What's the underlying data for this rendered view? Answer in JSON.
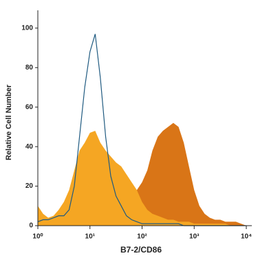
{
  "chart_data": {
    "type": "area",
    "log_x": true,
    "xlabel": "B7-2/CD86",
    "ylabel": "Relative Cell Number",
    "x": [
      1,
      1.26,
      1.58,
      2,
      2.51,
      3.16,
      3.98,
      5.01,
      6.31,
      7.94,
      10,
      12.6,
      15.8,
      20,
      25.1,
      31.6,
      39.8,
      50.1,
      63.1,
      79.4,
      100,
      126,
      158,
      200,
      251,
      316,
      398,
      501,
      631,
      794,
      1000,
      1259,
      1585,
      1995,
      2512,
      3162,
      3981,
      5012,
      6310,
      7943,
      10000
    ],
    "series": [
      {
        "color": "#d97517",
        "style": "fill",
        "values": [
          2,
          1,
          1,
          1,
          2,
          2,
          3,
          3,
          3,
          4,
          4,
          4,
          4,
          4,
          4,
          4,
          5,
          8,
          12,
          18,
          22,
          28,
          38,
          45,
          48,
          50,
          52,
          50,
          42,
          30,
          18,
          10,
          6,
          4,
          3,
          3,
          2,
          2,
          2,
          1,
          0
        ]
      },
      {
        "color": "#f5a623",
        "style": "fill",
        "values": [
          10,
          6,
          4,
          5,
          8,
          12,
          18,
          28,
          38,
          42,
          47,
          48,
          42,
          38,
          35,
          32,
          30,
          26,
          22,
          18,
          12,
          8,
          6,
          5,
          4,
          3,
          3,
          2,
          2,
          2,
          1,
          1,
          1,
          1,
          1,
          1,
          1,
          0,
          0,
          0,
          0
        ]
      },
      {
        "color": "#1f5a80",
        "style": "line",
        "values": [
          2,
          3,
          3,
          4,
          5,
          5,
          8,
          20,
          45,
          70,
          88,
          97,
          75,
          45,
          25,
          15,
          10,
          5,
          3,
          2,
          1,
          1,
          1,
          1,
          1,
          1,
          1,
          1,
          0,
          0,
          0,
          0,
          0,
          0,
          0,
          0,
          0,
          0,
          0,
          0,
          0
        ]
      }
    ],
    "xlim": [
      1,
      10000
    ],
    "xticks": [
      {
        "value": 1,
        "label": "10⁰"
      },
      {
        "value": 10,
        "label": "10¹"
      },
      {
        "value": 100,
        "label": "10²"
      },
      {
        "value": 1000,
        "label": "10³"
      },
      {
        "value": 10000,
        "label": "10⁴"
      }
    ],
    "ylim": [
      0,
      109
    ],
    "yticks": [
      0,
      20,
      40,
      60,
      80,
      100
    ]
  }
}
